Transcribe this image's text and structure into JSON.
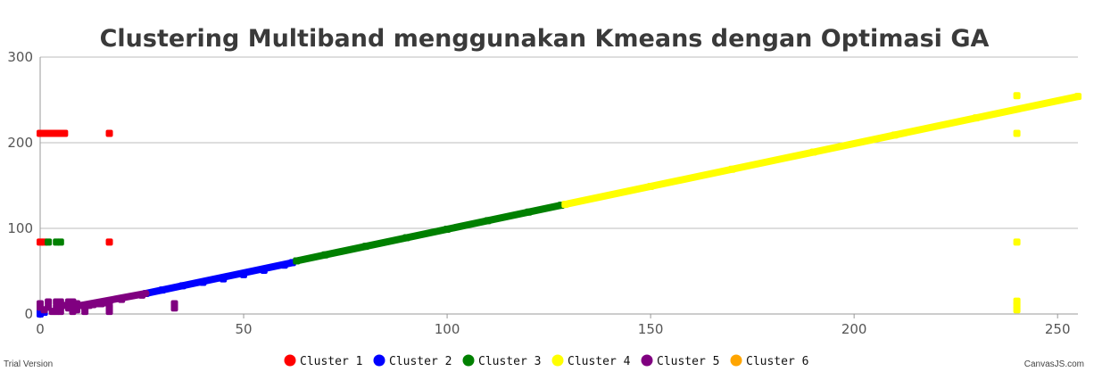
{
  "chart_data": {
    "type": "scatter",
    "title": "Clustering Multiband menggunakan Kmeans dengan Optimasi GA",
    "xlabel": "",
    "ylabel": "",
    "xlim": [
      0,
      255
    ],
    "ylim": [
      0,
      300
    ],
    "x_ticks": [
      "0",
      "50",
      "100",
      "150",
      "200",
      "250"
    ],
    "y_ticks": [
      "0",
      "100",
      "200",
      "300"
    ],
    "grid": "horizontal",
    "legend_position": "bottom-center",
    "series": [
      {
        "name": "Cluster 1",
        "color": "#ff0000",
        "points": [
          [
            0,
            211
          ],
          [
            1,
            211
          ],
          [
            2,
            211
          ],
          [
            3,
            211
          ],
          [
            4,
            211
          ],
          [
            5,
            211
          ],
          [
            6,
            211
          ],
          [
            17,
            211
          ],
          [
            0,
            84
          ],
          [
            1,
            84
          ],
          [
            17,
            84
          ]
        ]
      },
      {
        "name": "Cluster 2",
        "color": "#0000ff",
        "points": [
          [
            0,
            0
          ],
          [
            0,
            3
          ],
          [
            1,
            2
          ],
          [
            26,
            24
          ],
          [
            30,
            28
          ],
          [
            35,
            33
          ],
          [
            40,
            37
          ],
          [
            45,
            41
          ],
          [
            50,
            46
          ],
          [
            55,
            51
          ],
          [
            60,
            57
          ],
          [
            62,
            60
          ]
        ],
        "line": [
          [
            26,
            24
          ],
          [
            62,
            60
          ]
        ]
      },
      {
        "name": "Cluster 3",
        "color": "#008000",
        "points": [
          [
            2,
            84
          ],
          [
            4,
            84
          ],
          [
            5,
            84
          ],
          [
            63,
            62
          ],
          [
            70,
            69
          ],
          [
            80,
            79
          ],
          [
            90,
            89
          ],
          [
            100,
            99
          ],
          [
            110,
            109
          ],
          [
            120,
            119
          ],
          [
            128,
            127
          ]
        ],
        "line": [
          [
            63,
            62
          ],
          [
            128,
            127
          ]
        ]
      },
      {
        "name": "Cluster 4",
        "color": "#ffff00",
        "points": [
          [
            240,
            255
          ],
          [
            240,
            211
          ],
          [
            240,
            84
          ],
          [
            240,
            15
          ],
          [
            240,
            10
          ],
          [
            240,
            5
          ],
          [
            129,
            128
          ],
          [
            150,
            149
          ],
          [
            170,
            169
          ],
          [
            190,
            189
          ],
          [
            210,
            209
          ],
          [
            230,
            229
          ],
          [
            255,
            254
          ]
        ],
        "line": [
          [
            129,
            128
          ],
          [
            255,
            254
          ]
        ]
      },
      {
        "name": "Cluster 5",
        "color": "#800080",
        "points": [
          [
            0,
            12
          ],
          [
            0,
            8
          ],
          [
            1,
            5
          ],
          [
            2,
            14
          ],
          [
            2,
            8
          ],
          [
            3,
            3
          ],
          [
            4,
            14
          ],
          [
            4,
            8
          ],
          [
            4,
            3
          ],
          [
            5,
            14
          ],
          [
            5,
            8
          ],
          [
            5,
            3
          ],
          [
            6,
            10
          ],
          [
            7,
            14
          ],
          [
            7,
            7
          ],
          [
            8,
            14
          ],
          [
            8,
            8
          ],
          [
            8,
            3
          ],
          [
            9,
            12
          ],
          [
            9,
            5
          ],
          [
            10,
            10
          ],
          [
            11,
            8
          ],
          [
            11,
            3
          ],
          [
            12,
            10
          ],
          [
            13,
            11
          ],
          [
            14,
            12
          ],
          [
            15,
            12
          ],
          [
            16,
            13
          ],
          [
            17,
            14
          ],
          [
            17,
            8
          ],
          [
            17,
            3
          ],
          [
            33,
            12
          ],
          [
            33,
            7
          ],
          [
            20,
            17
          ],
          [
            25,
            22
          ]
        ],
        "line": [
          [
            10,
            10
          ],
          [
            26,
            24
          ]
        ]
      },
      {
        "name": "Cluster 6",
        "color": "#ffa500",
        "points": []
      }
    ]
  },
  "footer": {
    "left": "Trial Version",
    "right": "CanvasJS.com"
  }
}
